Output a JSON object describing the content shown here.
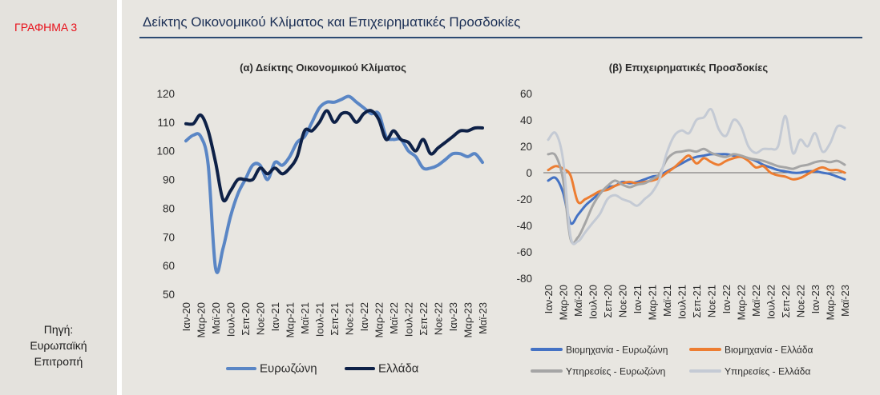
{
  "figure_label": "ΓΡΑΦΗΜΑ 3",
  "title": "Δείκτης Οικονομικού Κλίματος και Επιχειρηματικές Προσδοκίες",
  "source_lines": [
    "Πηγή:",
    "Ευρωπαϊκή",
    "Επιτροπή"
  ],
  "colors": {
    "eurozone": "#5a86c5",
    "greece": "#0e2147",
    "industry_ez": "#4472c4",
    "industry_gr": "#ed7d31",
    "services_ez": "#a5a5a5",
    "services_gr": "#c4cad4"
  },
  "chart_data": [
    {
      "type": "line",
      "title": "(α) Δείκτης Οικονομικού Κλίματος",
      "x_tick_labels": [
        "Ιαν-20",
        "Μαρ-20",
        "Μαϊ-20",
        "Ιουλ-20",
        "Σεπ-20",
        "Νοε-20",
        "Ιαν-21",
        "Μαρ-21",
        "Μαϊ-21",
        "Ιουλ-21",
        "Σεπ-21",
        "Νοε-21",
        "Ιαν-22",
        "Μαρ-22",
        "Μαϊ-22",
        "Ιουλ-22",
        "Σεπ-22",
        "Νοε-22",
        "Ιαν-23",
        "Μαρ-23",
        "Μαϊ-23"
      ],
      "ylim": [
        50,
        120
      ],
      "yticks": [
        50,
        60,
        70,
        80,
        90,
        100,
        110,
        120
      ],
      "legend_position": "bottom",
      "series": [
        {
          "name": "Ευρωζώνη",
          "color_key": "eurozone",
          "values": [
            103.5,
            105.5,
            105,
            95,
            59,
            66,
            77,
            85,
            90,
            95,
            95,
            90,
            96,
            95,
            98,
            103,
            105,
            110,
            115,
            117,
            117,
            118,
            119,
            117,
            115,
            113,
            113,
            105,
            104,
            104,
            100,
            98,
            94,
            94,
            95,
            97,
            99,
            99,
            98,
            99,
            96
          ]
        },
        {
          "name": "Ελλάδα",
          "color_key": "greece",
          "values": [
            109.5,
            109.5,
            112.5,
            107,
            96,
            83,
            86,
            90,
            90,
            90,
            94,
            92,
            94,
            92,
            94,
            98,
            107,
            107,
            110,
            114,
            110,
            113,
            113,
            110,
            113,
            114,
            111,
            104,
            107,
            104,
            103,
            100,
            104,
            99,
            101,
            103,
            105,
            107,
            107,
            108,
            108
          ]
        }
      ]
    },
    {
      "type": "line",
      "title": "(β) Επιχειρηματικές Προσδοκίες",
      "x_tick_labels": [
        "Ιαν-20",
        "Μαρ-20",
        "Μαϊ-20",
        "Ιουλ-20",
        "Σεπ-20",
        "Νοε-20",
        "Ιαν-21",
        "Μαρ-21",
        "Μαϊ-21",
        "Ιουλ-21",
        "Σεπ-21",
        "Νοε-21",
        "Ιαν-22",
        "Μαρ-22",
        "Μαϊ-22",
        "Ιουλ-22",
        "Σεπ-22",
        "Νοε-22",
        "Ιαν-23",
        "Μαρ-23",
        "Μαϊ-23"
      ],
      "ylim": [
        -80,
        60
      ],
      "yticks": [
        -80,
        -60,
        -40,
        -20,
        0,
        20,
        40,
        60
      ],
      "legend_position": "bottom",
      "series": [
        {
          "name": "Βιομηχανία - Ευρωζώνη",
          "color_key": "industry_ez",
          "values": [
            -6,
            -4,
            -15,
            -38,
            -32,
            -25,
            -20,
            -15,
            -11,
            -10,
            -7,
            -8,
            -7,
            -5,
            -3,
            -2,
            1,
            4,
            7,
            10,
            12,
            13,
            14,
            14,
            14,
            13,
            12,
            11,
            9,
            6,
            4,
            2,
            1,
            0,
            0,
            1,
            1,
            0,
            -1,
            -3,
            -5
          ]
        },
        {
          "name": "Βιομηχανία - Ελλάδα",
          "color_key": "industry_gr",
          "values": [
            2,
            5,
            3,
            -2,
            -22,
            -20,
            -17,
            -14,
            -13,
            -10,
            -8,
            -7,
            -8,
            -7,
            -6,
            -4,
            0,
            4,
            9,
            13,
            7,
            11,
            8,
            6,
            9,
            11,
            12,
            9,
            4,
            5,
            0,
            -2,
            -3,
            -5,
            -4,
            -1,
            2,
            4,
            2,
            2,
            0
          ]
        },
        {
          "name": "Υπηρεσίες - Ευρωζώνη",
          "color_key": "services_ez",
          "values": [
            14,
            13,
            -5,
            -50,
            -49,
            -38,
            -25,
            -16,
            -10,
            -6,
            -9,
            -11,
            -9,
            -8,
            -5,
            -1,
            10,
            15,
            16,
            17,
            16,
            18,
            15,
            13,
            12,
            14,
            13,
            11,
            10,
            9,
            7,
            5,
            4,
            3,
            5,
            6,
            8,
            9,
            8,
            9,
            6
          ]
        },
        {
          "name": "Υπηρεσίες - Ελλάδα",
          "color_key": "services_gr",
          "values": [
            25,
            30,
            10,
            -48,
            -52,
            -45,
            -38,
            -31,
            -20,
            -17,
            -20,
            -22,
            -25,
            -20,
            -15,
            -5,
            15,
            28,
            32,
            30,
            40,
            42,
            48,
            33,
            28,
            40,
            35,
            20,
            15,
            18,
            18,
            20,
            43,
            15,
            25,
            20,
            30,
            16,
            22,
            35,
            34
          ]
        }
      ]
    }
  ]
}
